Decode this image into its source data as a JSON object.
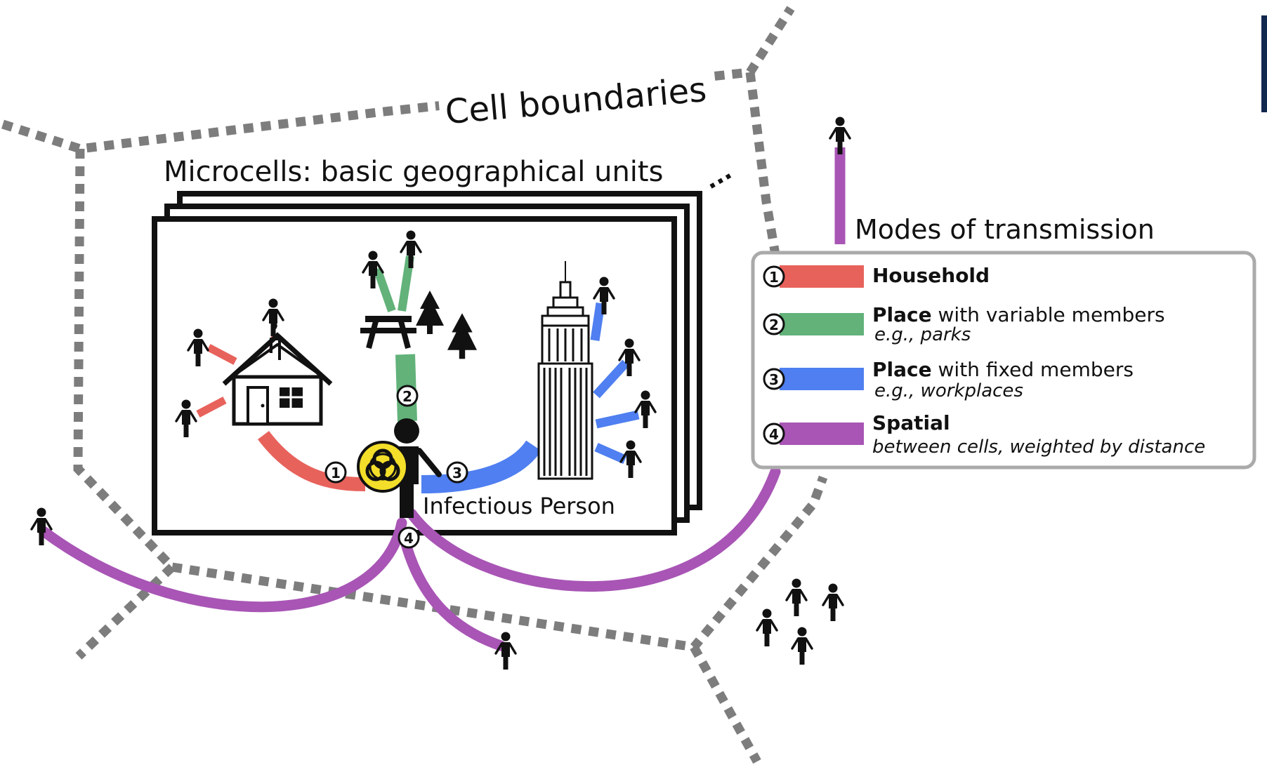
{
  "title_cells": "Cell boundaries",
  "title_microcells": "Microcells: basic geographical units",
  "ellipsis": "...",
  "infectious_label": "Infectious Person",
  "badges": {
    "household": "1",
    "place_variable": "2",
    "place_fixed": "3",
    "spatial": "4"
  },
  "legend": {
    "title": "Modes of transmission",
    "items": [
      {
        "number": "1",
        "bold": "Household",
        "rest": "",
        "sub": "",
        "color": "#e8625c"
      },
      {
        "number": "2",
        "bold": "Place",
        "rest": " with variable members",
        "sub": "e.g., parks",
        "color": "#62b27a"
      },
      {
        "number": "3",
        "bold": "Place",
        "rest": " with fixed members",
        "sub": "e.g., workplaces",
        "color": "#4f7ff0"
      },
      {
        "number": "4",
        "bold": "Spatial",
        "rest": "",
        "sub": "between cells, weighted by distance",
        "color": "#a855b5"
      }
    ]
  },
  "colors": {
    "household": "#e8625c",
    "place_variable": "#62b27a",
    "place_fixed": "#4f7ff0",
    "spatial": "#a855b5",
    "boundary": "#7d7d7d",
    "biohazard": "#f3de2a"
  },
  "icons": [
    "person-icon",
    "house-icon",
    "picnic-table-icon",
    "tree-icon",
    "skyscraper-icon",
    "biohazard-icon"
  ]
}
